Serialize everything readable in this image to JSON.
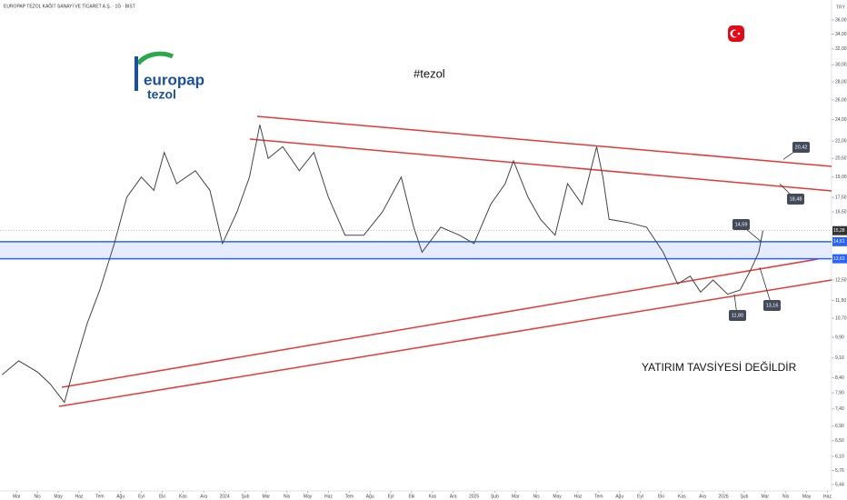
{
  "title": "EUROPAP TEZOL KAĞIT SANAYİ VE TİCARET A.Ş. · 1G · BIST",
  "currency": "TRY",
  "logo": [
    "europap",
    "tezol"
  ],
  "hashtag": "#tezol",
  "disclaimer": "YATIRIM TAVSİYESİ DEĞİLDİR",
  "chart_data": {
    "type": "line",
    "color": "#444444",
    "log_scale": true,
    "x": [
      -0.7,
      0.1,
      1.0,
      1.6,
      2.3,
      2.7,
      3.4,
      4.0,
      4.7,
      5.3,
      6.0,
      6.6,
      7.1,
      7.7,
      8.6,
      9.3,
      9.9,
      10.6,
      11.2,
      11.7,
      12.1,
      12.8,
      13.6,
      14.3,
      15.0,
      15.8,
      16.7,
      17.6,
      18.5,
      19.1,
      19.5,
      20.4,
      21.3,
      22.0,
      22.8,
      23.5,
      23.9,
      24.6,
      25.2,
      25.9,
      26.5,
      27.2,
      27.9,
      28.2,
      28.5,
      29.4,
      30.3,
      31.1,
      31.8,
      32.4,
      32.9,
      33.5,
      34.2,
      34.8,
      35.3,
      35.7,
      35.9
    ],
    "values": [
      8.5,
      9.0,
      8.6,
      8.2,
      7.6,
      8.6,
      10.5,
      12.0,
      14.5,
      17.5,
      19.0,
      18.0,
      21.0,
      18.5,
      19.5,
      18.0,
      14.5,
      16.5,
      19.0,
      23.5,
      20.5,
      21.5,
      19.5,
      21.0,
      17.5,
      15.0,
      15.0,
      16.5,
      19.0,
      15.5,
      14.0,
      15.5,
      15.0,
      14.5,
      17.0,
      18.5,
      20.3,
      17.5,
      16.0,
      15.0,
      18.5,
      17.0,
      21.5,
      19.0,
      16.0,
      15.8,
      15.5,
      14.0,
      12.3,
      12.7,
      11.9,
      12.5,
      11.8,
      12.0,
      13.0,
      14.0,
      15.28
    ],
    "xlim": [
      -0.8,
      39.2
    ],
    "xticks": [
      {
        "value": 0,
        "label": "Mar"
      },
      {
        "value": 1,
        "label": "Nis"
      },
      {
        "value": 2,
        "label": "May"
      },
      {
        "value": 3,
        "label": "Haz"
      },
      {
        "value": 4,
        "label": "Tem"
      },
      {
        "value": 5,
        "label": "Ağu"
      },
      {
        "value": 6,
        "label": "Eyl"
      },
      {
        "value": 7,
        "label": "Eki"
      },
      {
        "value": 8,
        "label": "Kas"
      },
      {
        "value": 9,
        "label": "Ara"
      },
      {
        "value": 10,
        "label": "2024"
      },
      {
        "value": 11,
        "label": "Şub"
      },
      {
        "value": 12,
        "label": "Mar"
      },
      {
        "value": 13,
        "label": "Nis"
      },
      {
        "value": 14,
        "label": "May"
      },
      {
        "value": 15,
        "label": "Haz"
      },
      {
        "value": 16,
        "label": "Tem"
      },
      {
        "value": 17,
        "label": "Ağu"
      },
      {
        "value": 18,
        "label": "Eyl"
      },
      {
        "value": 19,
        "label": "Eki"
      },
      {
        "value": 20,
        "label": "Kas"
      },
      {
        "value": 21,
        "label": "Ara"
      },
      {
        "value": 22,
        "label": "2025"
      },
      {
        "value": 23,
        "label": "Şub"
      },
      {
        "value": 24,
        "label": "Mar"
      },
      {
        "value": 25,
        "label": "Nis"
      },
      {
        "value": 26,
        "label": "May"
      },
      {
        "value": 27,
        "label": "Haz"
      },
      {
        "value": 28,
        "label": "Tem"
      },
      {
        "value": 29,
        "label": "Ağu"
      },
      {
        "value": 30,
        "label": "Eyl"
      },
      {
        "value": 31,
        "label": "Eki"
      },
      {
        "value": 32,
        "label": "Kas"
      },
      {
        "value": 33,
        "label": "Ara"
      },
      {
        "value": 34,
        "label": "2026"
      },
      {
        "value": 35,
        "label": "Şub"
      },
      {
        "value": 36,
        "label": "Mar"
      },
      {
        "value": 37,
        "label": "Nis"
      },
      {
        "value": 38,
        "label": "May"
      },
      {
        "value": 39,
        "label": "Haz"
      }
    ],
    "ylim": [
      5.44,
      36
    ],
    "yticks": [
      {
        "value": 36,
        "label": "36,00"
      },
      {
        "value": 34,
        "label": "34,00"
      },
      {
        "value": 32,
        "label": "32,00"
      },
      {
        "value": 30,
        "label": "30,00"
      },
      {
        "value": 28,
        "label": "28,00"
      },
      {
        "value": 26,
        "label": "26,00"
      },
      {
        "value": 24,
        "label": "24,00"
      },
      {
        "value": 22,
        "label": "22,00"
      },
      {
        "value": 20.5,
        "label": "20,50"
      },
      {
        "value": 19,
        "label": "19,00"
      },
      {
        "value": 17.5,
        "label": "17,50"
      },
      {
        "value": 16.5,
        "label": "16,50"
      },
      {
        "value": 12.5,
        "label": "12,50"
      },
      {
        "value": 11.5,
        "label": "11,50"
      },
      {
        "value": 10.7,
        "label": "10,70"
      },
      {
        "value": 9.9,
        "label": "9,90"
      },
      {
        "value": 9.1,
        "label": "9,10"
      },
      {
        "value": 8.4,
        "label": "8,40"
      },
      {
        "value": 7.9,
        "label": "7,90"
      },
      {
        "value": 7.4,
        "label": "7,40"
      },
      {
        "value": 6.9,
        "label": "6,90"
      },
      {
        "value": 6.5,
        "label": "6,50"
      },
      {
        "value": 6.1,
        "label": "6,10"
      },
      {
        "value": 5.76,
        "label": "5,76"
      },
      {
        "value": 5.44,
        "label": "5,44"
      }
    ],
    "last": {
      "value": 15.28,
      "label": "15,28"
    },
    "levels": [
      {
        "value": 14.61,
        "label": "14,61"
      },
      {
        "value": 13.63,
        "label": "13,63"
      }
    ],
    "callouts": [
      {
        "value": 20.42,
        "label": "20,42"
      },
      {
        "value": 18.48,
        "label": "18,48"
      },
      {
        "value": 14.59,
        "label": "14,59"
      },
      {
        "value": 13.16,
        "label": "13,16"
      },
      {
        "value": 11.8,
        "label": "11,80"
      }
    ]
  }
}
